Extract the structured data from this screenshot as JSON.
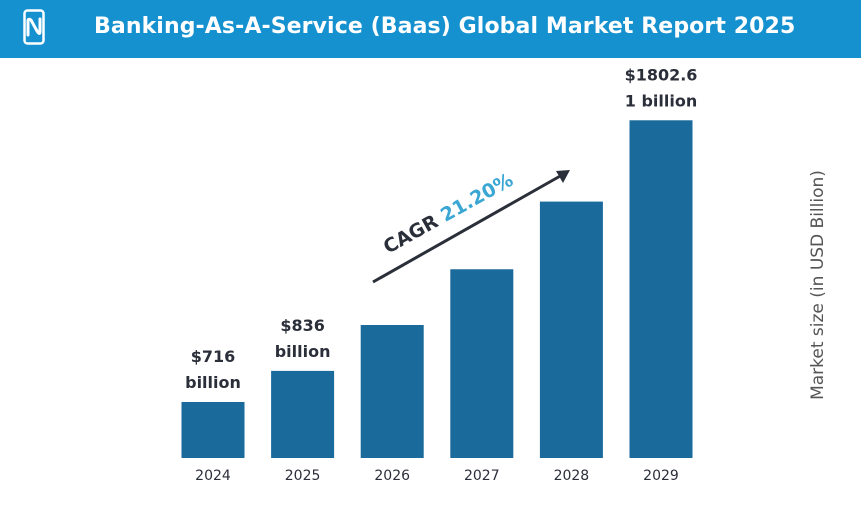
{
  "header": {
    "title": "Banking-As-A-Service (Baas) Global Market Report 2025",
    "background": "#1591d0",
    "logo_icon": "phone-n-logo-icon"
  },
  "chart_data": {
    "type": "bar",
    "title": "Banking-As-A-Service (Baas) Global Market Report 2025",
    "categories": [
      "2024",
      "2025",
      "2026",
      "2027",
      "2028",
      "2029"
    ],
    "values": [
      716,
      836,
      1013,
      1228,
      1489,
      1802.61
    ],
    "data_labels": [
      "$716\nbillion",
      "$836\nbillion",
      "",
      "",
      "",
      "$1802.6\n1 billion"
    ],
    "ylabel": "Market size (in USD Billion)",
    "ylim": [
      500,
      1850
    ],
    "grid": false,
    "annotation": {
      "prefix": "CAGR",
      "value": "21.20%"
    },
    "colors": {
      "bar": "#1a6a9c",
      "cagr_value": "#3aa6d3",
      "text": "#2b2f3a"
    }
  }
}
